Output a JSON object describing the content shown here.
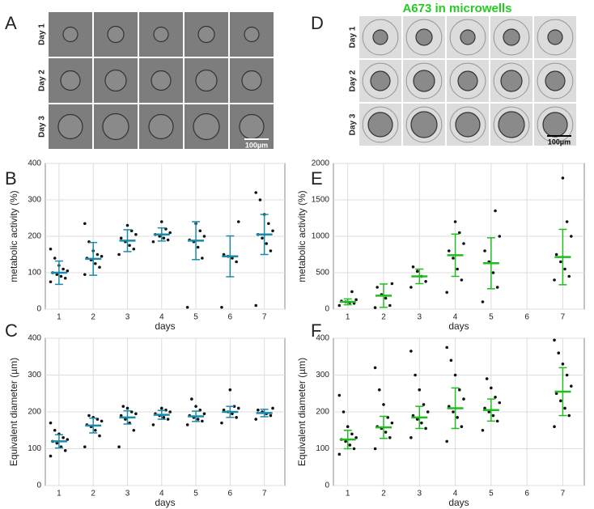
{
  "panel_labels": [
    "A",
    "B",
    "C",
    "D",
    "E",
    "F"
  ],
  "image_a": {
    "row_labels": [
      "Day 1",
      "Day 2",
      "Day 3"
    ],
    "scale_bar": "100µm"
  },
  "image_d": {
    "title": "A673 in microwells",
    "row_labels": [
      "Day 1",
      "Day 2",
      "Day 3"
    ],
    "scale_bar": "100µm"
  },
  "chart_data": [
    {
      "type": "dotplot",
      "ylabel": "metabolic activity (%)",
      "xlabel": "days",
      "color": "#1a8aa8",
      "grid": true,
      "x": [
        1,
        2,
        3,
        4,
        5,
        6,
        7
      ],
      "xlim": [
        0.6,
        7.6
      ],
      "xticks": [
        1,
        2,
        3,
        4,
        5,
        6,
        7
      ],
      "ylim": [
        0,
        400
      ],
      "yticks": [
        0,
        100,
        200,
        300,
        400
      ],
      "mean": [
        100,
        138,
        188,
        205,
        188,
        145,
        205
      ],
      "error": [
        32,
        45,
        30,
        18,
        52,
        56,
        55
      ],
      "points": [
        [
          75,
          85,
          90,
          95,
          100,
          105,
          110,
          120,
          140,
          165
        ],
        [
          95,
          115,
          125,
          135,
          140,
          145,
          150,
          160,
          185,
          235
        ],
        [
          150,
          165,
          175,
          185,
          195,
          205,
          215,
          230
        ],
        [
          185,
          190,
          195,
          200,
          205,
          210,
          220,
          240
        ],
        [
          5,
          140,
          170,
          185,
          190,
          200,
          215,
          235
        ],
        [
          5,
          130,
          140,
          145,
          150,
          240
        ],
        [
          10,
          160,
          180,
          195,
          205,
          215,
          235,
          260,
          300,
          320
        ]
      ]
    },
    {
      "type": "dotplot",
      "ylabel": "Equivalent diameter (µm)",
      "xlabel": "days",
      "color": "#1a8aa8",
      "grid": true,
      "x": [
        1,
        2,
        3,
        4,
        5,
        6,
        7
      ],
      "xlim": [
        0.6,
        7.6
      ],
      "xticks": [
        1,
        2,
        3,
        4,
        5,
        6,
        7
      ],
      "ylim": [
        0,
        400
      ],
      "yticks": [
        0,
        100,
        200,
        300,
        400
      ],
      "mean": [
        120,
        163,
        185,
        192,
        188,
        200,
        197
      ],
      "error": [
        18,
        20,
        18,
        12,
        14,
        15,
        10
      ],
      "points": [
        [
          80,
          95,
          105,
          115,
          120,
          125,
          130,
          140,
          150,
          170
        ],
        [
          105,
          135,
          150,
          160,
          165,
          175,
          180,
          185,
          190
        ],
        [
          105,
          150,
          170,
          180,
          190,
          195,
          200,
          210,
          215
        ],
        [
          165,
          180,
          185,
          190,
          195,
          200,
          205,
          210
        ],
        [
          165,
          175,
          180,
          185,
          190,
          195,
          205,
          215,
          235
        ],
        [
          170,
          185,
          195,
          200,
          205,
          210,
          215,
          260
        ],
        [
          180,
          190,
          195,
          200,
          205,
          210
        ]
      ]
    },
    {
      "type": "dotplot",
      "ylabel": "metabolic activity (%)",
      "xlabel": "days",
      "color": "#22bb22",
      "grid": true,
      "x": [
        1,
        2,
        3,
        4,
        5,
        6,
        7
      ],
      "xlim": [
        0.6,
        7.6
      ],
      "xticks": [
        1,
        2,
        3,
        4,
        5,
        6,
        7
      ],
      "ylim": [
        0,
        2000
      ],
      "yticks": [
        0,
        500,
        1000,
        1500,
        2000
      ],
      "mean": [
        100,
        185,
        450,
        740,
        630,
        null,
        715
      ],
      "error": [
        40,
        160,
        100,
        290,
        350,
        null,
        380
      ],
      "points": [
        [
          50,
          80,
          90,
          100,
          110,
          130,
          240
        ],
        [
          20,
          50,
          150,
          200,
          300,
          350
        ],
        [
          300,
          380,
          450,
          520,
          580
        ],
        [
          230,
          400,
          550,
          700,
          800,
          900,
          1050,
          1200
        ],
        [
          100,
          300,
          500,
          650,
          800,
          1000,
          1350
        ],
        null,
        [
          400,
          450,
          550,
          650,
          750,
          1000,
          1200,
          1800
        ]
      ]
    },
    {
      "type": "dotplot",
      "ylabel": "Equivalent diameter (µm)",
      "xlabel": "days",
      "color": "#22bb22",
      "grid": true,
      "x": [
        1,
        2,
        3,
        4,
        5,
        6,
        7
      ],
      "xlim": [
        0.6,
        7.6
      ],
      "xticks": [
        1,
        2,
        3,
        4,
        5,
        6,
        7
      ],
      "ylim": [
        0,
        400
      ],
      "yticks": [
        0,
        100,
        200,
        300,
        400
      ],
      "mean": [
        125,
        158,
        185,
        210,
        205,
        null,
        255
      ],
      "error": [
        25,
        30,
        30,
        55,
        30,
        null,
        65
      ],
      "points": [
        [
          85,
          100,
          110,
          120,
          125,
          130,
          140,
          160,
          200,
          245
        ],
        [
          100,
          130,
          145,
          155,
          160,
          170,
          185,
          220,
          260,
          320
        ],
        [
          130,
          155,
          170,
          180,
          190,
          200,
          220,
          260,
          300,
          365
        ],
        [
          120,
          160,
          185,
          200,
          215,
          235,
          260,
          300,
          340,
          375
        ],
        [
          150,
          175,
          190,
          200,
          210,
          225,
          240,
          265,
          290
        ],
        null,
        [
          160,
          190,
          210,
          230,
          250,
          270,
          300,
          330,
          360,
          395
        ]
      ]
    }
  ]
}
